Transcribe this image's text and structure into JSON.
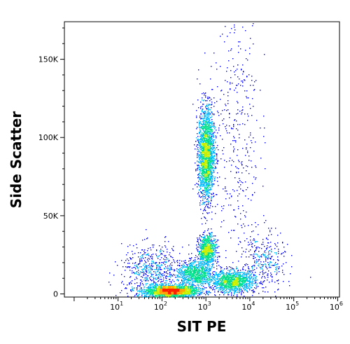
{
  "chart_data": {
    "type": "scatter",
    "plot_style": "density-dot-plot (pseudocolor)",
    "xlabel": "SIT PE",
    "ylabel": "Side Scatter",
    "x_scale": "log",
    "xlim": [
      0.6,
      1100000
    ],
    "ylim": [
      -2000,
      174000
    ],
    "x_ticks": [
      {
        "value": 10,
        "base": "10",
        "exp": "1"
      },
      {
        "value": 100,
        "base": "10",
        "exp": "2"
      },
      {
        "value": 1000,
        "base": "10",
        "exp": "3"
      },
      {
        "value": 10000,
        "base": "10",
        "exp": "4"
      },
      {
        "value": 100000,
        "base": "10",
        "exp": "5"
      },
      {
        "value": 1000000,
        "base": "10",
        "exp": "6"
      }
    ],
    "y_ticks": [
      {
        "value": 0,
        "label": "0"
      },
      {
        "value": 50000,
        "label": "50K"
      },
      {
        "value": 100000,
        "label": "100K"
      },
      {
        "value": 150000,
        "label": "150K"
      }
    ],
    "density_colors": [
      "#0000ff",
      "#00b4ff",
      "#00e08a",
      "#c8f000",
      "#ffa500",
      "#ff2000"
    ],
    "populations": [
      {
        "center_x": 160,
        "center_y": 2000,
        "spread_logx": 0.3,
        "spread_y": 2000,
        "count": 2200
      },
      {
        "center_x": 550,
        "center_y": 13000,
        "spread_logx": 0.2,
        "spread_y": 4000,
        "count": 900
      },
      {
        "center_x": 1050,
        "center_y": 28000,
        "spread_logx": 0.1,
        "spread_y": 5000,
        "count": 900
      },
      {
        "center_x": 4000,
        "center_y": 8000,
        "spread_logx": 0.25,
        "spread_y": 3500,
        "count": 1300
      },
      {
        "center_x": 1000,
        "center_y": 90000,
        "spread_logx": 0.09,
        "spread_y": 15000,
        "count": 2200
      },
      {
        "center_x": 5000,
        "center_y": 110000,
        "spread_logx": 0.25,
        "spread_y": 50000,
        "count": 400
      },
      {
        "center_x": 60,
        "center_y": 15000,
        "spread_logx": 0.35,
        "spread_y": 8000,
        "count": 600
      },
      {
        "center_x": 20000,
        "center_y": 20000,
        "spread_logx": 0.25,
        "spread_y": 10000,
        "count": 350
      }
    ]
  }
}
